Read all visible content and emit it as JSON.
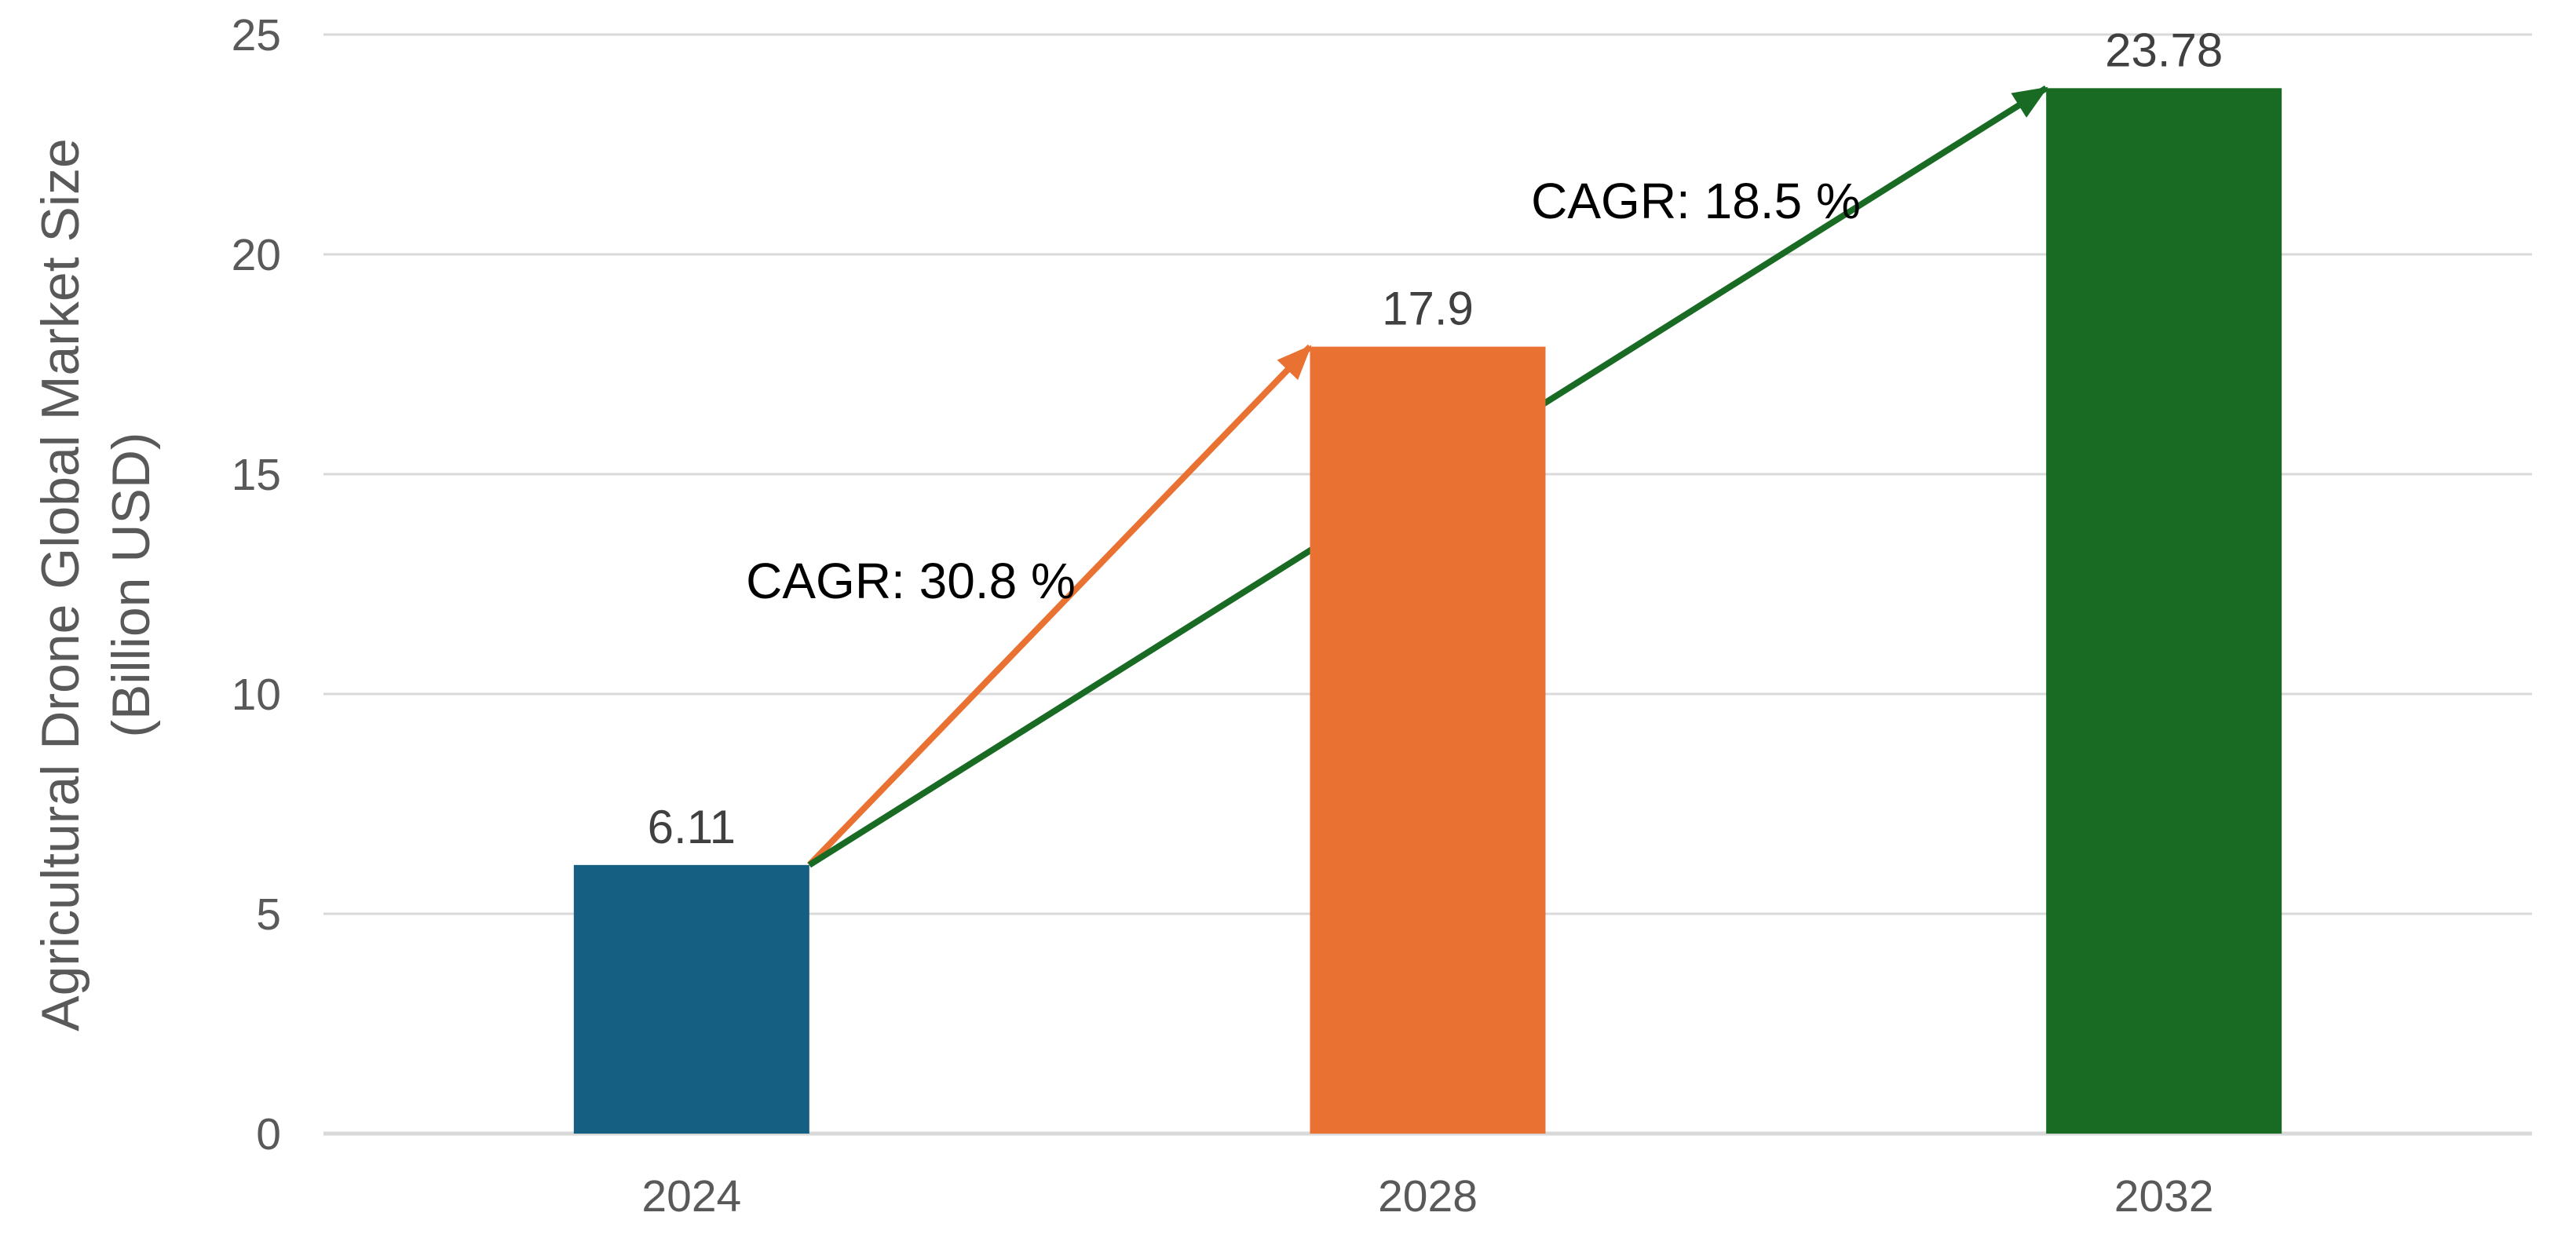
{
  "chart_data": {
    "type": "bar",
    "title": "",
    "ylabel_lines": [
      "Agricultural Drone Global Market Size",
      "(Billion USD)"
    ],
    "xlabel": "",
    "categories": [
      "2024",
      "2028",
      "2032"
    ],
    "values": [
      6.11,
      17.9,
      23.78
    ],
    "labels": [
      "6.11",
      "17.9",
      "23.78"
    ],
    "bar_colors": [
      "#156082",
      "#E97132",
      "#196B24"
    ],
    "ylim": [
      0,
      25
    ],
    "yticks": [
      0,
      5,
      10,
      15,
      20,
      25
    ],
    "grid": "horizontal-only",
    "legend": "none",
    "annotations": [
      {
        "label": "CAGR: 30.8 %",
        "from_index": 0,
        "to_index": 1,
        "color": "#E97132"
      },
      {
        "label": "CAGR: 18.5 %",
        "from_index": 0,
        "to_index": 2,
        "color": "#196B24"
      }
    ],
    "colors": {
      "background": "#FFFFFF",
      "gridline": "#D9D9D9",
      "axis_line": "#D9D9D9",
      "tick_text": "#595959",
      "axis_title_text": "#595959",
      "data_label_text": "#404040",
      "annotation_text": "#000000"
    }
  }
}
